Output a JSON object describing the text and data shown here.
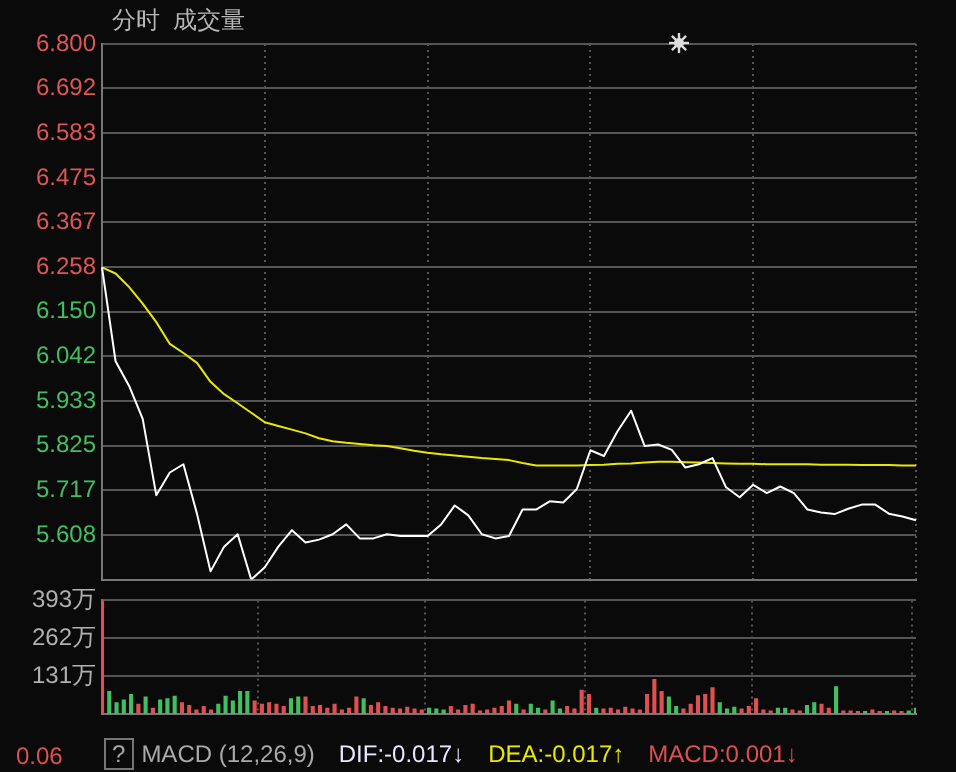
{
  "chart_data": [
    {
      "type": "line",
      "title": "分时  成交量",
      "categories": [
        null,
        null,
        null,
        null,
        null,
        null,
        null,
        null,
        null,
        null,
        null,
        null,
        null,
        null,
        null,
        null,
        null,
        null,
        null,
        null,
        null,
        null,
        null,
        null,
        null,
        null,
        null,
        null,
        null,
        null,
        null,
        null,
        null,
        null,
        null,
        null,
        null,
        null,
        null,
        null,
        null,
        null,
        null,
        null,
        null,
        null,
        null,
        null,
        null,
        null,
        null,
        null,
        null,
        null,
        null,
        null,
        null,
        null,
        null,
        null,
        null
      ],
      "ylim": [
        5.5,
        6.8
      ],
      "yticks": [
        {
          "value": 5.608,
          "label": "5.608"
        },
        {
          "value": 5.717,
          "label": "5.717"
        },
        {
          "value": 5.825,
          "label": "5.825"
        },
        {
          "value": 5.933,
          "label": "5.933"
        },
        {
          "value": 6.042,
          "label": "6.042"
        },
        {
          "value": 6.15,
          "label": "6.150"
        },
        {
          "value": 6.258,
          "label": "6.258"
        },
        {
          "value": 6.367,
          "label": "6.367"
        },
        {
          "value": 6.475,
          "label": "6.475"
        },
        {
          "value": 6.583,
          "label": "6.583"
        },
        {
          "value": 6.692,
          "label": "6.692"
        },
        {
          "value": 6.8,
          "label": "6.800"
        }
      ],
      "grid": true,
      "legend": false,
      "tick_labels": "y",
      "series": [
        {
          "color": "#ffffff",
          "values": [
            6.258,
            6.03,
            5.97,
            5.89,
            5.705,
            5.76,
            5.78,
            5.66,
            5.52,
            5.58,
            5.61,
            5.5,
            5.53,
            5.58,
            5.62,
            5.59,
            5.597,
            5.61,
            5.634,
            5.6,
            5.6,
            5.61,
            5.606,
            5.606,
            5.606,
            5.634,
            5.68,
            5.656,
            5.61,
            5.6,
            5.606,
            5.67,
            5.67,
            5.69,
            5.687,
            5.72,
            5.814,
            5.8,
            5.86,
            5.91,
            5.824,
            5.828,
            5.815,
            5.772,
            5.78,
            5.795,
            5.724,
            5.7,
            5.73,
            5.71,
            5.726,
            5.71,
            5.67,
            5.663,
            5.659,
            5.672,
            5.682,
            5.682,
            5.66,
            5.653,
            5.644
          ]
        },
        {
          "color": "#e8e800",
          "values": [
            6.258,
            6.243,
            6.21,
            6.17,
            6.125,
            6.072,
            6.05,
            6.026,
            5.98,
            5.95,
            5.928,
            5.905,
            5.882,
            5.873,
            5.864,
            5.855,
            5.843,
            5.836,
            5.832,
            5.829,
            5.826,
            5.824,
            5.819,
            5.813,
            5.808,
            5.804,
            5.801,
            5.798,
            5.795,
            5.793,
            5.79,
            5.783,
            5.777,
            5.777,
            5.777,
            5.777,
            5.778,
            5.779,
            5.781,
            5.782,
            5.784,
            5.786,
            5.786,
            5.785,
            5.784,
            5.783,
            5.782,
            5.781,
            5.781,
            5.78,
            5.78,
            5.78,
            5.78,
            5.779,
            5.779,
            5.779,
            5.778,
            5.778,
            5.778,
            5.777,
            5.777
          ]
        }
      ]
    },
    {
      "type": "bar",
      "categories": [
        null,
        null,
        null,
        null,
        null,
        null,
        null,
        null,
        null,
        null,
        null,
        null,
        null,
        null,
        null,
        null,
        null,
        null,
        null,
        null,
        null,
        null,
        null,
        null,
        null,
        null,
        null,
        null,
        null,
        null,
        null,
        null,
        null,
        null,
        null,
        null,
        null,
        null,
        null,
        null,
        null,
        null,
        null,
        null,
        null,
        null,
        null,
        null,
        null,
        null,
        null,
        null,
        null,
        null,
        null,
        null,
        null,
        null,
        null,
        null,
        null,
        null,
        null,
        null,
        null,
        null,
        null,
        null,
        null,
        null,
        null,
        null,
        null,
        null,
        null,
        null,
        null,
        null,
        null,
        null,
        null,
        null,
        null,
        null,
        null,
        null,
        null,
        null,
        null,
        null,
        null,
        null,
        null,
        null,
        null,
        null,
        null,
        null,
        null,
        null,
        null,
        null,
        null,
        null,
        null,
        null,
        null,
        null,
        null,
        null,
        null,
        null,
        null
      ],
      "ylim": [
        0,
        393
      ],
      "yticks": [
        {
          "value": 131,
          "label": "131万"
        },
        {
          "value": 262,
          "label": "262万"
        },
        {
          "value": 393,
          "label": "393万"
        }
      ],
      "grid": true,
      "legend": false,
      "tick_labels": "y",
      "values": [
        393,
        77,
        38,
        48,
        67,
        33,
        58,
        19,
        48,
        52,
        61,
        38,
        29,
        13,
        25,
        13,
        33,
        61,
        44,
        77,
        77,
        44,
        33,
        38,
        33,
        25,
        52,
        58,
        58,
        25,
        29,
        19,
        33,
        13,
        19,
        58,
        52,
        29,
        38,
        25,
        19,
        17,
        23,
        17,
        13,
        19,
        17,
        13,
        25,
        13,
        29,
        33,
        10,
        13,
        19,
        25,
        44,
        33,
        13,
        33,
        19,
        13,
        44,
        17,
        25,
        17,
        82,
        67,
        19,
        17,
        19,
        13,
        23,
        17,
        13,
        67,
        119,
        77,
        58,
        25,
        17,
        33,
        63,
        67,
        90,
        38,
        17,
        23,
        17,
        25,
        52,
        13,
        10,
        19,
        19,
        13,
        10,
        29,
        38,
        33,
        19,
        94,
        10,
        10,
        8,
        8,
        13,
        8,
        8,
        10,
        8,
        10,
        19
      ],
      "colors": [
        "#e05050",
        "#40c060",
        "#40c060",
        "#40c060",
        "#40c060",
        "#e05050",
        "#40c060",
        "#e05050",
        "#40c060",
        "#40c060",
        "#40c060",
        "#e05050",
        "#e05050",
        "#e05050",
        "#e05050",
        "#e05050",
        "#40c060",
        "#40c060",
        "#40c060",
        "#40c060",
        "#40c060",
        "#e05050",
        "#e05050",
        "#e05050",
        "#e05050",
        "#e05050",
        "#40c060",
        "#40c060",
        "#e05050",
        "#e05050",
        "#e05050",
        "#e05050",
        "#e05050",
        "#e05050",
        "#e05050",
        "#e05050",
        "#40c060",
        "#e05050",
        "#e05050",
        "#e05050",
        "#e05050",
        "#e05050",
        "#e05050",
        "#e05050",
        "#e05050",
        "#40c060",
        "#40c060",
        "#40c060",
        "#e05050",
        "#e05050",
        "#e05050",
        "#e05050",
        "#e05050",
        "#e05050",
        "#e05050",
        "#e05050",
        "#e05050",
        "#40c060",
        "#e05050",
        "#40c060",
        "#40c060",
        "#e05050",
        "#40c060",
        "#40c060",
        "#e05050",
        "#e05050",
        "#e05050",
        "#e05050",
        "#40c060",
        "#e05050",
        "#e05050",
        "#e05050",
        "#e05050",
        "#e05050",
        "#e05050",
        "#e05050",
        "#e05050",
        "#e05050",
        "#40c060",
        "#40c060",
        "#e05050",
        "#e05050",
        "#e05050",
        "#e05050",
        "#e05050",
        "#40c060",
        "#40c060",
        "#40c060",
        "#e05050",
        "#e05050",
        "#e05050",
        "#e05050",
        "#e05050",
        "#40c060",
        "#40c060",
        "#e05050",
        "#e05050",
        "#40c060",
        "#40c060",
        "#e05050",
        "#e05050",
        "#40c060",
        "#e05050",
        "#e05050",
        "#e05050",
        "#40c060",
        "#e05050",
        "#e05050",
        "#40c060",
        "#e05050",
        "#e05050",
        "#40c060",
        "#40c060"
      ],
      "annotations": [
        "?",
        "MACD (12,26,9)",
        "DIF:-0.017↓",
        "DEA:-0.017↑",
        "MACD:0.001↓",
        "0.06"
      ]
    }
  ]
}
